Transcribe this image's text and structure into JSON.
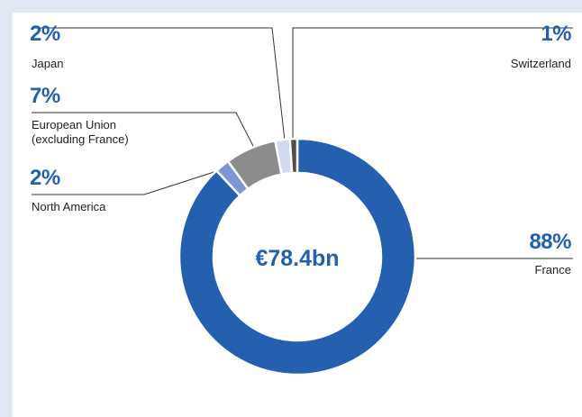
{
  "chart_data": {
    "type": "donut",
    "center_label": "€78.4bn",
    "categories": [
      "France",
      "North America",
      "European Union (excluding France)",
      "Japan",
      "Switzerland"
    ],
    "values": [
      88,
      2,
      7,
      2,
      1
    ],
    "value_labels": [
      "88%",
      "2%",
      "7%",
      "2%",
      "1%"
    ],
    "colors": [
      "#245fb0",
      "#7f95d3",
      "#8c8c8c",
      "#d3daef",
      "#4d4d4d"
    ]
  }
}
